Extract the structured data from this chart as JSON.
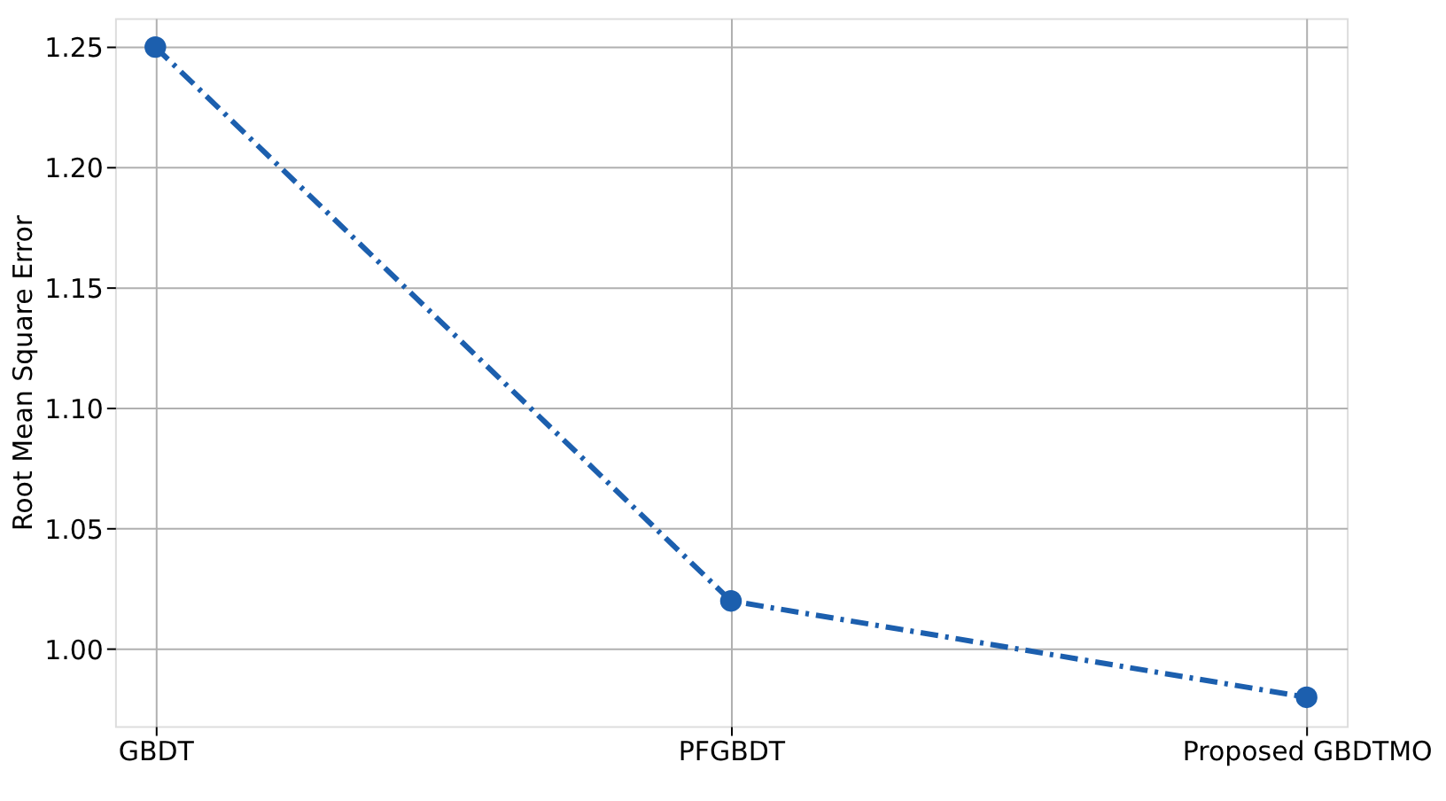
{
  "chart_data": {
    "type": "line",
    "ylabel": "Root Mean Square Error",
    "categories": [
      "GBDT",
      "PFGBDT",
      "Proposed GBDTMO"
    ],
    "series": [
      {
        "color": "#1c5fae",
        "values": [
          1.25,
          1.02,
          0.98
        ]
      }
    ],
    "ylim": [
      0.968,
      1.262
    ],
    "yticks": [
      {
        "value": 1.0,
        "label": "1.00"
      },
      {
        "value": 1.05,
        "label": "1.05"
      },
      {
        "value": 1.1,
        "label": "1.10"
      },
      {
        "value": 1.15,
        "label": "1.15"
      },
      {
        "value": 1.2,
        "label": "1.20"
      },
      {
        "value": 1.25,
        "label": "1.25"
      }
    ],
    "grid": true,
    "marker": "circle",
    "line_style": "dashed"
  }
}
